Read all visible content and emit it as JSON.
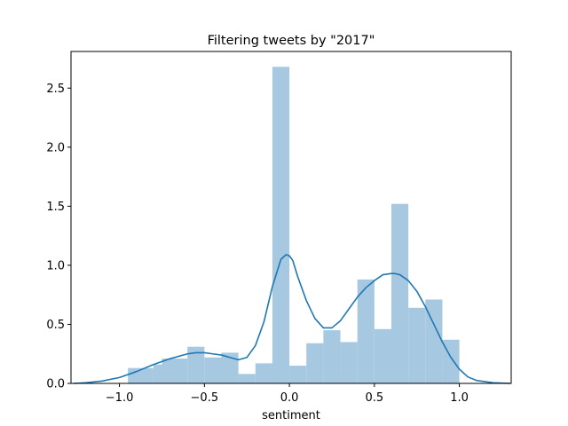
{
  "chart_data": {
    "type": "bar",
    "title": "Filtering tweets by \"2017\"",
    "xlabel": "sentiment",
    "ylabel": "",
    "xlim": [
      -1.285,
      1.305
    ],
    "ylim": [
      0,
      2.81
    ],
    "xticks": [
      -1.0,
      -0.5,
      0.0,
      0.5,
      1.0
    ],
    "xtick_labels": [
      "−1.0",
      "−0.5",
      "0.0",
      "0.5",
      "1.0"
    ],
    "yticks": [
      0.0,
      0.5,
      1.0,
      1.5,
      2.0,
      2.5
    ],
    "ytick_labels": [
      "0.0",
      "0.5",
      "1.0",
      "1.5",
      "2.0",
      "2.5"
    ],
    "grid": false,
    "bar_color": "#a6c8e1",
    "line_color": "#1f77b4",
    "bins": [
      {
        "x0": -0.95,
        "x1": -0.8,
        "value": 0.13
      },
      {
        "x0": -0.8,
        "x1": -0.75,
        "value": 0.16
      },
      {
        "x0": -0.75,
        "x1": -0.6,
        "value": 0.21
      },
      {
        "x0": -0.6,
        "x1": -0.5,
        "value": 0.31
      },
      {
        "x0": -0.5,
        "x1": -0.4,
        "value": 0.22
      },
      {
        "x0": -0.4,
        "x1": -0.3,
        "value": 0.26
      },
      {
        "x0": -0.3,
        "x1": -0.2,
        "value": 0.08
      },
      {
        "x0": -0.2,
        "x1": -0.1,
        "value": 0.17
      },
      {
        "x0": -0.1,
        "x1": 0.0,
        "value": 2.68
      },
      {
        "x0": 0.0,
        "x1": 0.1,
        "value": 0.15
      },
      {
        "x0": 0.1,
        "x1": 0.2,
        "value": 0.34
      },
      {
        "x0": 0.2,
        "x1": 0.3,
        "value": 0.45
      },
      {
        "x0": 0.3,
        "x1": 0.4,
        "value": 0.35
      },
      {
        "x0": 0.4,
        "x1": 0.5,
        "value": 0.88
      },
      {
        "x0": 0.5,
        "x1": 0.6,
        "value": 0.46
      },
      {
        "x0": 0.6,
        "x1": 0.7,
        "value": 1.52
      },
      {
        "x0": 0.7,
        "x1": 0.8,
        "value": 0.64
      },
      {
        "x0": 0.8,
        "x1": 0.9,
        "value": 0.71
      },
      {
        "x0": 0.9,
        "x1": 1.0,
        "value": 0.37
      }
    ],
    "kde": {
      "x": [
        -1.27,
        -1.2,
        -1.1,
        -1.0,
        -0.9,
        -0.8,
        -0.7,
        -0.6,
        -0.55,
        -0.5,
        -0.45,
        -0.4,
        -0.35,
        -0.3,
        -0.25,
        -0.2,
        -0.15,
        -0.1,
        -0.05,
        -0.02,
        0.0,
        0.02,
        0.05,
        0.1,
        0.15,
        0.2,
        0.25,
        0.3,
        0.35,
        0.4,
        0.45,
        0.5,
        0.55,
        0.6,
        0.62,
        0.65,
        0.7,
        0.75,
        0.8,
        0.85,
        0.9,
        0.95,
        1.0,
        1.05,
        1.1,
        1.2,
        1.3
      ],
      "y": [
        0.0,
        0.005,
        0.02,
        0.05,
        0.1,
        0.16,
        0.21,
        0.25,
        0.26,
        0.26,
        0.25,
        0.24,
        0.22,
        0.2,
        0.22,
        0.32,
        0.52,
        0.82,
        1.05,
        1.09,
        1.08,
        1.04,
        0.9,
        0.7,
        0.55,
        0.47,
        0.47,
        0.53,
        0.63,
        0.73,
        0.81,
        0.87,
        0.92,
        0.93,
        0.93,
        0.92,
        0.87,
        0.78,
        0.65,
        0.5,
        0.35,
        0.22,
        0.12,
        0.055,
        0.025,
        0.005,
        0.0
      ]
    }
  }
}
